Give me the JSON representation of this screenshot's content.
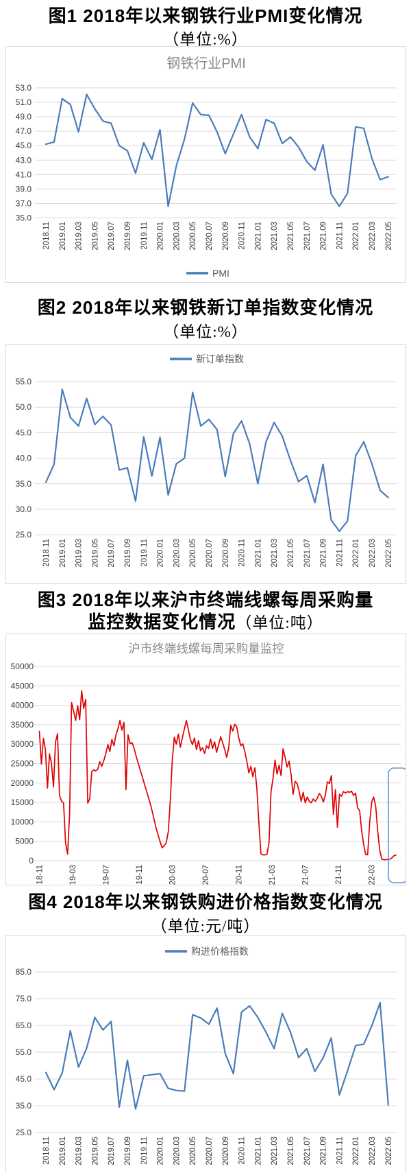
{
  "figures": [
    {
      "caption": "图1  2018年以来钢铁行业PMI变化情况",
      "unit": "（单位:%）"
    },
    {
      "caption": "图2  2018年以来钢铁新订单指数变化情况",
      "unit": "（单位:%）"
    },
    {
      "caption": "图3  2018年以来沪市终端线螺每周采购量",
      "caption2": "监控数据变化情况",
      "unit": "（单位:吨）"
    },
    {
      "caption": "图4  2018年以来钢铁购进价格指数变化情况",
      "unit": "（单位:元/吨）"
    }
  ],
  "chart_data": [
    {
      "type": "line",
      "title": "钢铁行业PMI",
      "legend": "PMI",
      "legend_position": "bottom",
      "color": "#4a7cba",
      "ylim": [
        35,
        53
      ],
      "ystep": 2,
      "y_decimals": 1,
      "grid": true,
      "categories": [
        "2018.11",
        "2018.12",
        "2019.01",
        "2019.02",
        "2019.03",
        "2019.04",
        "2019.05",
        "2019.06",
        "2019.07",
        "2019.08",
        "2019.09",
        "2019.10",
        "2019.11",
        "2019.12",
        "2020.01",
        "2020.02",
        "2020.03",
        "2020.04",
        "2020.05",
        "2020.06",
        "2020.07",
        "2020.08",
        "2020.09",
        "2020.10",
        "2020.11",
        "2020.12",
        "2021.01",
        "2021.02",
        "2021.03",
        "2021.04",
        "2021.05",
        "2021.06",
        "2021.07",
        "2021.08",
        "2021.09",
        "2021.10",
        "2021.11",
        "2021.12",
        "2022.01",
        "2022.02",
        "2022.03",
        "2022.04",
        "2022.05"
      ],
      "values": [
        45.2,
        45.5,
        51.5,
        50.7,
        46.9,
        52.1,
        50.1,
        48.4,
        48.1,
        45.0,
        44.3,
        41.2,
        45.4,
        43.1,
        47.2,
        36.6,
        42.2,
        45.9,
        50.9,
        49.3,
        49.2,
        46.9,
        43.9,
        46.6,
        49.3,
        46.2,
        44.6,
        48.6,
        48.1,
        45.3,
        46.2,
        44.8,
        42.8,
        41.6,
        45.1,
        38.3,
        36.6,
        38.4,
        47.6,
        47.4,
        43.2,
        40.3,
        40.7
      ]
    },
    {
      "type": "line",
      "title": "",
      "legend": "新订单指数",
      "legend_position": "top",
      "color": "#4a7cba",
      "ylim": [
        25,
        55
      ],
      "ystep": 5,
      "y_decimals": 1,
      "grid": true,
      "categories": [
        "2018.11",
        "2018.12",
        "2019.01",
        "2019.02",
        "2019.03",
        "2019.04",
        "2019.05",
        "2019.06",
        "2019.07",
        "2019.08",
        "2019.09",
        "2019.10",
        "2019.11",
        "2019.12",
        "2020.01",
        "2020.02",
        "2020.03",
        "2020.04",
        "2020.05",
        "2020.06",
        "2020.07",
        "2020.08",
        "2020.09",
        "2020.10",
        "2020.11",
        "2020.12",
        "2021.01",
        "2021.02",
        "2021.03",
        "2021.04",
        "2021.05",
        "2021.06",
        "2021.07",
        "2021.08",
        "2021.09",
        "2021.10",
        "2021.11",
        "2021.12",
        "2022.01",
        "2022.02",
        "2022.03",
        "2022.04",
        "2022.05"
      ],
      "values": [
        35.3,
        38.8,
        53.5,
        48.0,
        46.3,
        51.7,
        46.6,
        48.2,
        46.5,
        37.7,
        38.1,
        31.6,
        44.2,
        36.5,
        44.1,
        32.8,
        38.9,
        40.0,
        52.9,
        46.3,
        47.6,
        45.6,
        36.4,
        44.8,
        47.3,
        42.8,
        35.0,
        43.2,
        47.0,
        44.3,
        39.6,
        35.4,
        36.6,
        31.3,
        38.8,
        27.9,
        25.7,
        27.7,
        40.5,
        43.2,
        38.9,
        33.7,
        32.3
      ]
    },
    {
      "type": "line",
      "title": "沪市终端线螺每周采购量监控",
      "legend": "",
      "legend_position": "none",
      "color": "#e00000",
      "ylim": [
        0,
        50000
      ],
      "ystep": 5000,
      "y_decimals": 0,
      "grid": true,
      "x_labels": [
        "18-11",
        "19-03",
        "19-07",
        "19-11",
        "20-03",
        "20-07",
        "20-11",
        "21-03",
        "21-07",
        "21-11",
        "22-03"
      ],
      "values": [
        33300,
        24900,
        31500,
        28600,
        18700,
        27500,
        25100,
        19000,
        30500,
        32700,
        16800,
        15300,
        14900,
        4600,
        1700,
        12000,
        40700,
        38500,
        36100,
        39900,
        36300,
        43800,
        39200,
        41500,
        14800,
        15900,
        22900,
        23400,
        23100,
        23600,
        25500,
        24300,
        25800,
        27600,
        29900,
        28100,
        31200,
        29600,
        32300,
        34000,
        36100,
        33600,
        35600,
        18300,
        32400,
        30100,
        30400,
        29000,
        27000,
        25200,
        23500,
        21800,
        20000,
        18300,
        16500,
        14800,
        12800,
        10500,
        8300,
        6500,
        4800,
        3300,
        3900,
        4600,
        7500,
        15500,
        25900,
        31800,
        30000,
        32600,
        29200,
        31600,
        33900,
        36100,
        33600,
        31200,
        29900,
        31600,
        28600,
        30900,
        28300,
        29100,
        27600,
        29600,
        28900,
        31300,
        28900,
        30600,
        27900,
        29900,
        31900,
        30400,
        28600,
        26600,
        29100,
        34900,
        33400,
        35100,
        34500,
        31600,
        29600,
        30100,
        28100,
        25600,
        22600,
        24300,
        21600,
        23900,
        18500,
        9500,
        1800,
        1500,
        1500,
        1600,
        4600,
        17600,
        21100,
        25900,
        22300,
        24600,
        21900,
        28800,
        26600,
        24100,
        25600,
        22100,
        17100,
        20400,
        19900,
        17800,
        15300,
        17600,
        14900,
        16400,
        15300,
        14900,
        15900,
        15300,
        16100,
        17300,
        16600,
        15100,
        16900,
        20300,
        19900,
        21900,
        11900,
        18300,
        8600,
        17100,
        16600,
        17800,
        17400,
        17800,
        17600,
        17900,
        16800,
        17400,
        13600,
        12900,
        7900,
        4300,
        1600,
        1500,
        9900,
        15100,
        16400,
        14000,
        7600,
        2600,
        400,
        250,
        250,
        350,
        400,
        700,
        1250,
        1450
      ],
      "annotation_box": {
        "color": "#5b9bd5"
      }
    },
    {
      "type": "line",
      "title": "",
      "legend": "购进价格指数",
      "legend_position": "top",
      "color": "#4a7cba",
      "ylim": [
        25,
        85
      ],
      "ystep": 10,
      "y_decimals": 1,
      "grid": true,
      "categories": [
        "2018.11",
        "2018.12",
        "2019.01",
        "2019.02",
        "2019.03",
        "2019.04",
        "2019.05",
        "2019.06",
        "2019.07",
        "2019.08",
        "2019.09",
        "2019.10",
        "2019.11",
        "2019.12",
        "2020.01",
        "2020.02",
        "2020.03",
        "2020.04",
        "2020.05",
        "2020.06",
        "2020.07",
        "2020.08",
        "2020.09",
        "2020.10",
        "2020.11",
        "2020.12",
        "2021.01",
        "2021.02",
        "2021.03",
        "2021.04",
        "2021.05",
        "2021.06",
        "2021.07",
        "2021.08",
        "2021.09",
        "2021.10",
        "2021.11",
        "2021.12",
        "2022.01",
        "2022.02",
        "2022.03",
        "2022.04",
        "2022.05"
      ],
      "values": [
        47.4,
        41.0,
        47.2,
        63.0,
        49.4,
        56.5,
        68.0,
        63.3,
        66.5,
        34.5,
        52.0,
        33.8,
        46.2,
        46.6,
        47.0,
        41.5,
        40.7,
        40.5,
        69.0,
        67.8,
        65.5,
        71.5,
        54.5,
        47.0,
        70.0,
        72.3,
        68.0,
        62.5,
        56.3,
        69.5,
        62.5,
        53.0,
        56.3,
        47.8,
        52.8,
        60.3,
        39.0,
        48.0,
        57.5,
        58.0,
        65.0,
        73.5,
        35.3
      ]
    }
  ]
}
